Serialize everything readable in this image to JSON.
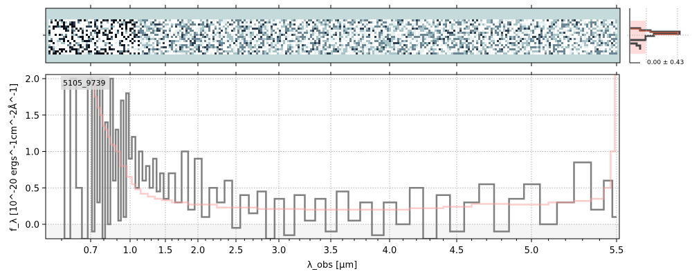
{
  "chart_data": [
    {
      "type": "heatmap",
      "panel": "2D spectrum",
      "colormap": "white-to-dark slate, teal background"
    },
    {
      "type": "line",
      "panel": "1D spectrum",
      "object_label": "5105_9739",
      "xlabel": "λ_obs [μm]",
      "ylabel": "f_λ [10^-20 ergs^-1cm^-2Å^-1]",
      "x_ticks": [
        0.7,
        1.0,
        1.5,
        2.0,
        2.5,
        3.0,
        3.5,
        4.0,
        4.5,
        5.0,
        5.5
      ],
      "x_tick_labels": [
        "0.7",
        "1.0",
        "1.5",
        "2.0",
        "2.5",
        "3.0",
        "3.5",
        "4.0",
        "4.5",
        "5.0",
        "5.5"
      ],
      "y_ticks": [
        0.0,
        0.5,
        1.0,
        1.5,
        2.0
      ],
      "y_tick_labels": [
        "0.0",
        "0.5",
        "1.0",
        "1.5",
        "2.0"
      ],
      "ylim": [
        -0.2,
        2.05
      ],
      "xlim": [
        0.55,
        5.52
      ],
      "grid": true,
      "series": [
        {
          "role": "data",
          "color": "#808080",
          "style": "steps",
          "x": [
            0.6,
            0.62,
            0.64,
            0.66,
            0.68,
            0.7,
            0.72,
            0.74,
            0.76,
            0.78,
            0.8,
            0.82,
            0.84,
            0.86,
            0.88,
            0.9,
            0.92,
            0.94,
            0.96,
            0.98,
            1.0,
            1.05,
            1.1,
            1.15,
            1.2,
            1.25,
            1.3,
            1.35,
            1.4,
            1.45,
            1.5,
            1.6,
            1.7,
            1.8,
            1.9,
            2.0,
            2.1,
            2.2,
            2.3,
            2.4,
            2.5,
            2.6,
            2.7,
            2.8,
            2.9,
            3.0,
            3.1,
            3.2,
            3.3,
            3.4,
            3.5,
            3.6,
            3.7,
            3.8,
            3.9,
            4.0,
            4.1,
            4.2,
            4.3,
            4.4,
            4.5,
            4.6,
            4.7,
            4.8,
            4.9,
            5.0,
            5.1,
            5.2,
            5.3,
            5.4,
            5.45,
            5.5
          ],
          "y": [
            1.9,
            -0.2,
            2.0,
            0.5,
            -0.2,
            2.0,
            -0.1,
            1.9,
            0.3,
            2.0,
            -0.2,
            1.4,
            0.0,
            2.0,
            0.6,
            1.3,
            0.05,
            1.7,
            0.1,
            1.8,
            0.9,
            1.2,
            0.5,
            1.0,
            0.6,
            0.8,
            0.5,
            0.9,
            0.45,
            0.7,
            0.35,
            0.7,
            0.3,
            1.0,
            0.2,
            0.9,
            0.1,
            0.5,
            0.3,
            0.6,
            -0.05,
            0.4,
            0.15,
            0.45,
            -0.2,
            0.35,
            -0.15,
            0.4,
            0.05,
            0.35,
            -0.1,
            0.45,
            0.05,
            0.3,
            -0.15,
            0.3,
            0.0,
            0.5,
            -0.2,
            0.4,
            -0.1,
            0.3,
            0.55,
            -0.1,
            0.35,
            0.55,
            0.0,
            0.3,
            0.85,
            0.2,
            0.6,
            0.1
          ]
        },
        {
          "role": "model",
          "color": "#ffb3b3",
          "style": "steps",
          "x": [
            0.72,
            0.74,
            0.76,
            0.78,
            0.8,
            0.82,
            0.84,
            0.86,
            0.88,
            0.9,
            0.95,
            1.0,
            1.05,
            1.1,
            1.2,
            1.3,
            1.4,
            1.5,
            1.7,
            2.0,
            2.5,
            3.0,
            3.5,
            4.0,
            4.3,
            4.5,
            4.7,
            5.0,
            5.2,
            5.3,
            5.4,
            5.45,
            5.48,
            5.5
          ],
          "y": [
            2.0,
            1.75,
            1.6,
            1.5,
            1.35,
            1.3,
            1.2,
            1.1,
            1.08,
            1.0,
            0.8,
            0.65,
            0.55,
            0.48,
            0.42,
            0.38,
            0.35,
            0.33,
            0.3,
            0.27,
            0.23,
            0.21,
            0.2,
            0.2,
            0.22,
            0.24,
            0.28,
            0.27,
            0.3,
            0.32,
            0.35,
            0.5,
            1.0,
            2.05
          ]
        }
      ]
    },
    {
      "type": "bar",
      "panel": "residual histogram",
      "label": "0.00 ± 0.43"
    }
  ]
}
